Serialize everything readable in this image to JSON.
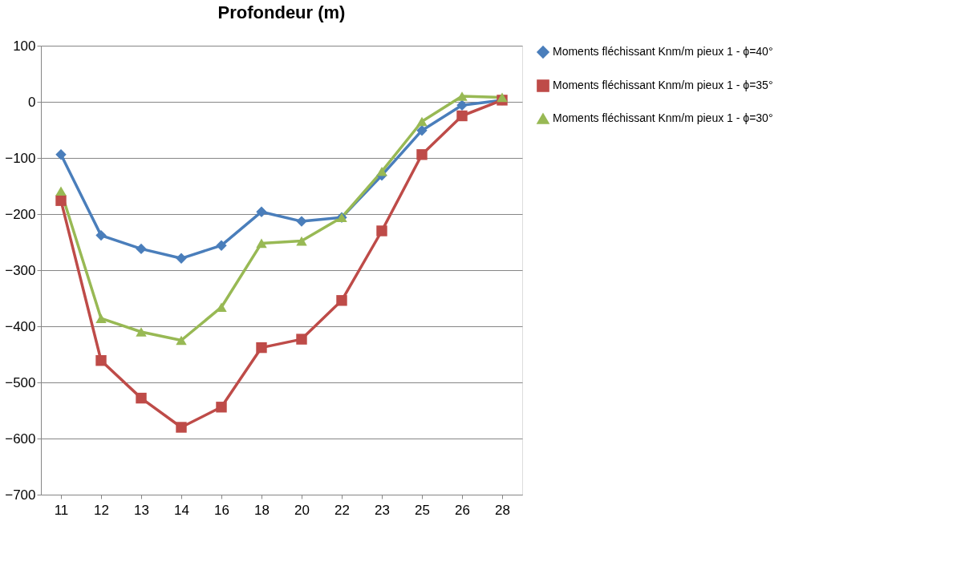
{
  "chart_data": {
    "type": "line",
    "title": "Profondeur (m)",
    "categories": [
      "11",
      "12",
      "13",
      "14",
      "16",
      "18",
      "20",
      "22",
      "23",
      "25",
      "26",
      "28"
    ],
    "series": [
      {
        "name": "Moments fléchissant Knm/m pieux 1 - ϕ=40°",
        "color": "#4a7ebb",
        "marker": "diamond",
        "values": [
          -94,
          -238,
          -262,
          -279,
          -256,
          -196,
          -213,
          -206,
          -131,
          -51,
          -6,
          3
        ]
      },
      {
        "name": "Moments fléchissant Knm/m pieux 1 - ϕ=35°",
        "color": "#be4b48",
        "marker": "square",
        "values": [
          -176,
          -461,
          -528,
          -580,
          -544,
          -438,
          -423,
          -354,
          -230,
          -94,
          -25,
          3
        ]
      },
      {
        "name": "Moments fléchissant Knm/m pieux 1 - ϕ=30°",
        "color": "#98b954",
        "marker": "triangle",
        "values": [
          -159,
          -386,
          -410,
          -425,
          -366,
          -252,
          -248,
          -206,
          -124,
          -35,
          10,
          8
        ]
      }
    ],
    "ylim": [
      -700,
      100
    ],
    "yticks": [
      -700,
      -600,
      -500,
      -400,
      -300,
      -200,
      -100,
      0,
      100
    ],
    "grid": "y",
    "legend": "right",
    "line_style": "solid"
  }
}
